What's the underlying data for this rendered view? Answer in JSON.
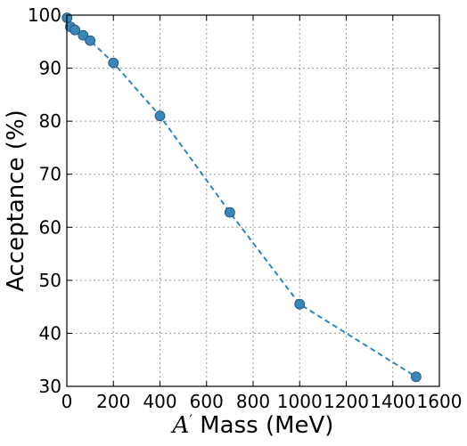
{
  "chart_data": {
    "type": "line",
    "title": "",
    "xlabel_prefix": "A",
    "xlabel_prime": "′",
    "xlabel_suffix": " Mass (MeV)",
    "ylabel": "Acceptance (%)",
    "xlim": [
      0,
      1600
    ],
    "ylim": [
      30,
      100
    ],
    "xticks": [
      0,
      200,
      400,
      600,
      800,
      1000,
      1200,
      1400,
      1600
    ],
    "yticks": [
      30,
      40,
      50,
      60,
      70,
      80,
      90,
      100
    ],
    "grid": true,
    "series": [
      {
        "color": "#2e86c1",
        "marker_color": "#3a86b8",
        "linestyle": "dashed",
        "marker": "circle",
        "x": [
          1,
          15,
          35,
          70,
          100,
          200,
          400,
          700,
          1000,
          1500
        ],
        "y": [
          99.5,
          97.8,
          97.2,
          96.2,
          95.2,
          91.0,
          81.0,
          62.8,
          45.5,
          31.8
        ]
      }
    ]
  }
}
